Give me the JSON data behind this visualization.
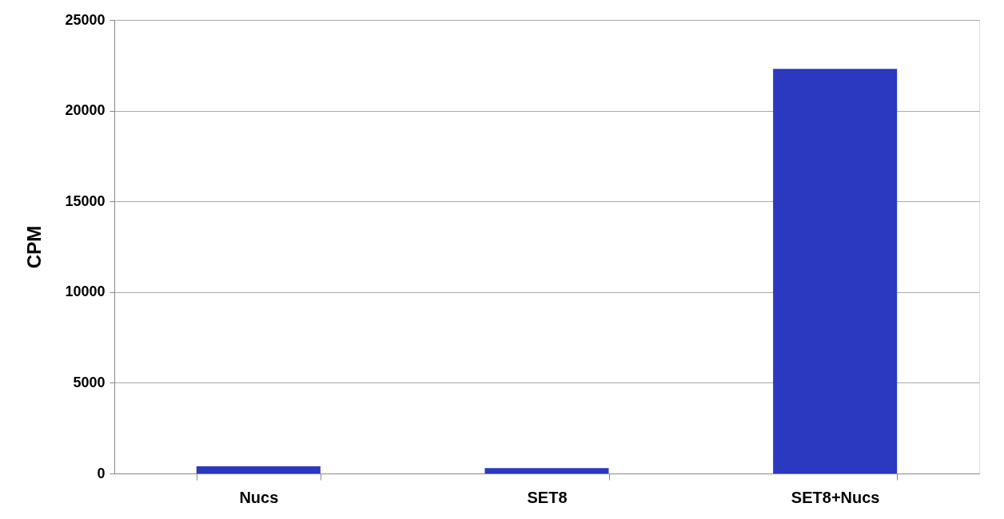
{
  "chart_data": {
    "type": "bar",
    "ylabel": "CPM",
    "categories": [
      "Nucs",
      "SET8",
      "SET8+Nucs"
    ],
    "series": [
      {
        "color": "#2b39c0",
        "values": [
          400,
          300,
          22300
        ]
      }
    ],
    "ylim": [
      0,
      25000
    ],
    "yticks": [
      0,
      5000,
      10000,
      15000,
      20000,
      25000
    ],
    "grid": "y"
  }
}
